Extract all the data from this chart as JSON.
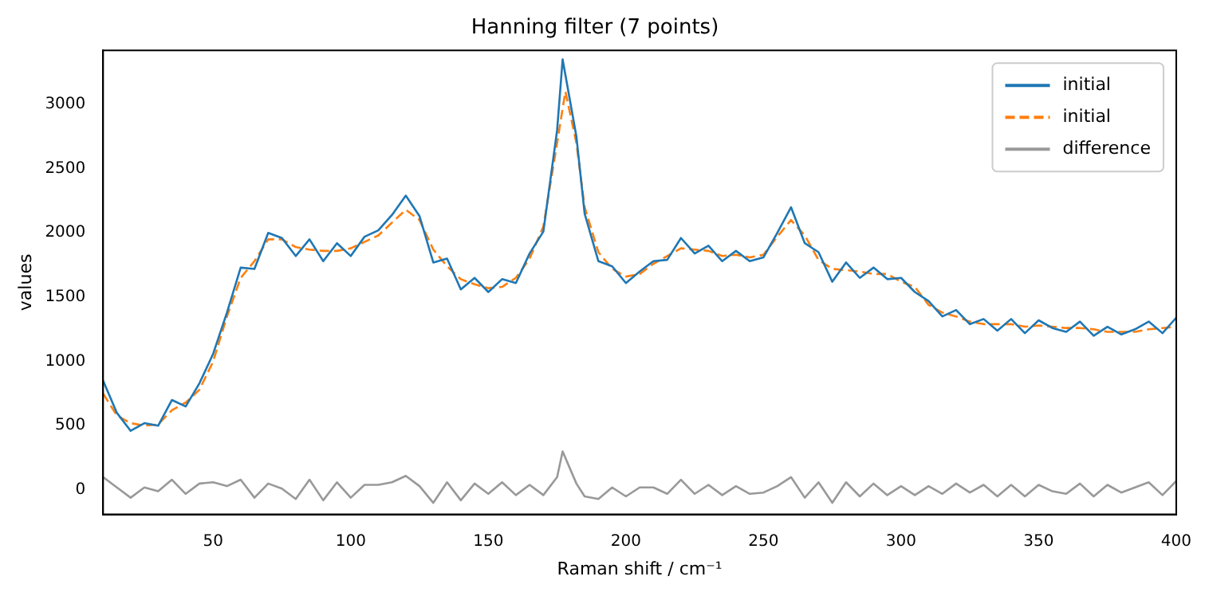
{
  "chart_data": {
    "type": "line",
    "title": "Hanning filter (7 points)",
    "xlabel": "Raman shift / cm⁻¹",
    "ylabel": "values",
    "xlim": [
      10,
      400
    ],
    "ylim": [
      -190,
      3420
    ],
    "xticks": [
      50,
      100,
      150,
      200,
      250,
      300,
      350,
      400
    ],
    "yticks": [
      0,
      500,
      1000,
      1500,
      2000,
      2500,
      3000
    ],
    "grid": false,
    "legend": "top right",
    "marker": "none",
    "series": [
      {
        "name": "initial",
        "color": "#1f77b4",
        "line_style": "solid",
        "x": [
          10,
          15,
          20,
          25,
          30,
          35,
          40,
          45,
          50,
          55,
          60,
          65,
          70,
          75,
          80,
          85,
          90,
          95,
          100,
          105,
          110,
          115,
          120,
          125,
          130,
          135,
          140,
          145,
          150,
          155,
          160,
          165,
          170,
          175,
          177,
          182,
          185,
          190,
          195,
          200,
          205,
          210,
          215,
          220,
          225,
          230,
          235,
          240,
          245,
          250,
          255,
          260,
          265,
          270,
          275,
          280,
          285,
          290,
          295,
          300,
          305,
          310,
          315,
          320,
          325,
          330,
          335,
          340,
          345,
          350,
          355,
          360,
          365,
          370,
          375,
          380,
          385,
          390,
          395,
          400
        ],
        "values": [
          850,
          600,
          460,
          520,
          500,
          700,
          650,
          830,
          1060,
          1380,
          1730,
          1720,
          2000,
          1960,
          1820,
          1950,
          1780,
          1920,
          1820,
          1970,
          2020,
          2140,
          2290,
          2130,
          1770,
          1800,
          1560,
          1650,
          1540,
          1640,
          1610,
          1840,
          2010,
          2800,
          3350,
          2750,
          2150,
          1780,
          1740,
          1610,
          1700,
          1780,
          1790,
          1960,
          1840,
          1900,
          1780,
          1860,
          1780,
          1810,
          2000,
          2200,
          1920,
          1850,
          1620,
          1770,
          1650,
          1730,
          1640,
          1650,
          1540,
          1470,
          1350,
          1400,
          1290,
          1330,
          1240,
          1330,
          1220,
          1320,
          1260,
          1230,
          1310,
          1200,
          1270,
          1210,
          1250,
          1310,
          1220,
          1340
        ]
      },
      {
        "name": "initial",
        "color": "#ff7f0e",
        "line_style": "dashed",
        "x": [
          10,
          15,
          20,
          25,
          30,
          35,
          40,
          45,
          50,
          55,
          60,
          65,
          70,
          75,
          80,
          85,
          90,
          95,
          100,
          105,
          110,
          115,
          120,
          125,
          130,
          135,
          140,
          145,
          150,
          155,
          160,
          165,
          170,
          175,
          178,
          182,
          185,
          190,
          195,
          200,
          205,
          210,
          215,
          220,
          225,
          230,
          235,
          240,
          245,
          250,
          255,
          260,
          265,
          270,
          275,
          280,
          285,
          290,
          295,
          300,
          305,
          310,
          315,
          320,
          325,
          330,
          335,
          340,
          345,
          350,
          355,
          360,
          365,
          370,
          375,
          380,
          385,
          390,
          395,
          400
        ],
        "values": [
          750,
          580,
          520,
          500,
          510,
          620,
          680,
          780,
          1000,
          1350,
          1650,
          1780,
          1950,
          1950,
          1890,
          1870,
          1860,
          1860,
          1880,
          1930,
          1980,
          2080,
          2180,
          2100,
          1870,
          1740,
          1640,
          1600,
          1570,
          1580,
          1650,
          1800,
          2050,
          2700,
          3100,
          2700,
          2200,
          1850,
          1720,
          1660,
          1680,
          1760,
          1820,
          1880,
          1870,
          1860,
          1820,
          1830,
          1810,
          1830,
          1970,
          2100,
          1980,
          1790,
          1720,
          1710,
          1700,
          1680,
          1680,
          1620,
          1580,
          1440,
          1380,
          1350,
          1310,
          1290,
          1290,
          1290,
          1270,
          1280,
          1270,
          1260,
          1260,
          1250,
          1230,
          1230,
          1230,
          1250,
          1260,
          1270
        ]
      },
      {
        "name": "difference",
        "color": "#999999",
        "line_style": "solid",
        "x": [
          10,
          15,
          20,
          25,
          30,
          35,
          40,
          45,
          50,
          55,
          60,
          65,
          70,
          75,
          80,
          85,
          90,
          95,
          100,
          105,
          110,
          115,
          120,
          125,
          130,
          135,
          140,
          145,
          150,
          155,
          160,
          165,
          170,
          175,
          177,
          182,
          185,
          190,
          195,
          200,
          205,
          210,
          215,
          220,
          225,
          230,
          235,
          240,
          245,
          250,
          255,
          260,
          265,
          270,
          275,
          280,
          285,
          290,
          295,
          300,
          305,
          310,
          315,
          320,
          325,
          330,
          335,
          340,
          345,
          350,
          355,
          360,
          365,
          370,
          375,
          380,
          385,
          390,
          395,
          400
        ],
        "values": [
          100,
          20,
          -60,
          20,
          -10,
          80,
          -30,
          50,
          60,
          30,
          80,
          -60,
          50,
          10,
          -70,
          80,
          -80,
          60,
          -60,
          40,
          40,
          60,
          110,
          30,
          -100,
          60,
          -80,
          50,
          -30,
          60,
          -40,
          40,
          -40,
          100,
          300,
          50,
          -50,
          -70,
          20,
          -50,
          20,
          20,
          -30,
          80,
          -30,
          40,
          -40,
          30,
          -30,
          -20,
          30,
          100,
          -60,
          60,
          -100,
          60,
          -50,
          50,
          -40,
          30,
          -40,
          30,
          -30,
          50,
          -20,
          40,
          -50,
          40,
          -50,
          40,
          -10,
          -30,
          50,
          -50,
          40,
          -20,
          20,
          60,
          -40,
          70
        ]
      }
    ]
  }
}
